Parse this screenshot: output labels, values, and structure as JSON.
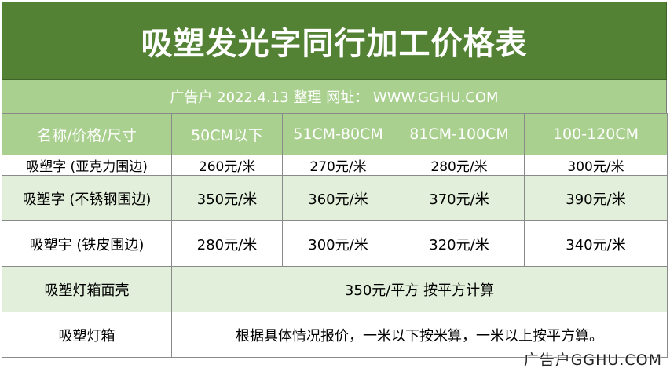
{
  "title": "吸塑发光字同行加工价格表",
  "subtitle": "广告户 2022.4.13  整理 网址： WWW.GGHU.COM",
  "header": [
    "名称/价格/尺寸",
    "50CM以下",
    "51CM-80CM",
    "81CM-100CM",
    "100-120CM"
  ],
  "rows": [
    {
      "name": "吸塑字 (亚克力围边)",
      "prices": [
        "260元/米",
        "270元/米",
        "280元/米",
        "300元/米"
      ]
    },
    {
      "name": "吸塑字 (不锈钢围边)",
      "prices": [
        "350元/米",
        "360元/米",
        "370元/米",
        "390元/米"
      ]
    },
    {
      "name": "吸塑宇 (铁皮围边)",
      "prices": [
        "280元/米",
        "300元/米",
        "320元/米",
        "340元/米"
      ]
    }
  ],
  "lightbox_shell": {
    "name": "吸塑灯箱面壳",
    "price": "350元/平方 按平方计算"
  },
  "lightbox": {
    "name": "吸塑灯箱",
    "price": "根据具体情况报价，一米以下按米算，一米以上按平方算。"
  },
  "watermark": "广告户GGHU.COM",
  "colors": {
    "title_bg": "#548235",
    "header_bg": "#a9d08e",
    "band_bg": "#e2efda"
  }
}
